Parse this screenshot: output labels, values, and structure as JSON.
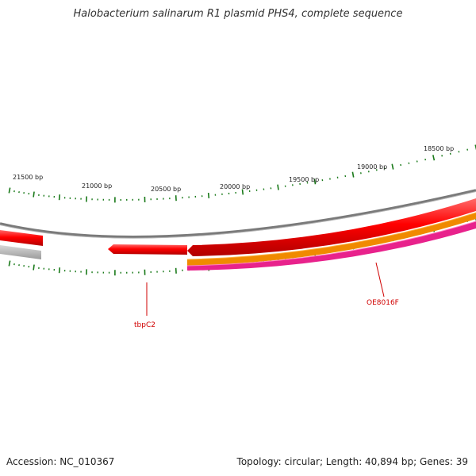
{
  "title": "Halobacterium salinarum R1 plasmid PHS4, complete sequence",
  "footer": {
    "accession": "Accession: NC_010367",
    "summary": "Topology: circular; Length: 40,894 bp; Genes: 39"
  },
  "ticks": {
    "labels": [
      "21500 bp",
      "21000 bp",
      "20500 bp",
      "20000 bp",
      "19500 bp",
      "19000 bp",
      "18500 bp"
    ]
  },
  "genes": [
    {
      "name": "tbpC2",
      "color": "#e60000"
    },
    {
      "name": "OE8016F",
      "color": "#e60000"
    }
  ],
  "colors": {
    "backbone": "#808080",
    "gene_forward": "#e60000",
    "gene_reverse_gray": "#b8b8b8",
    "orange_feature": "#f08000",
    "magenta_feature": "#e8228c",
    "ticks": "#1a7a1a",
    "label": "#d00000"
  }
}
